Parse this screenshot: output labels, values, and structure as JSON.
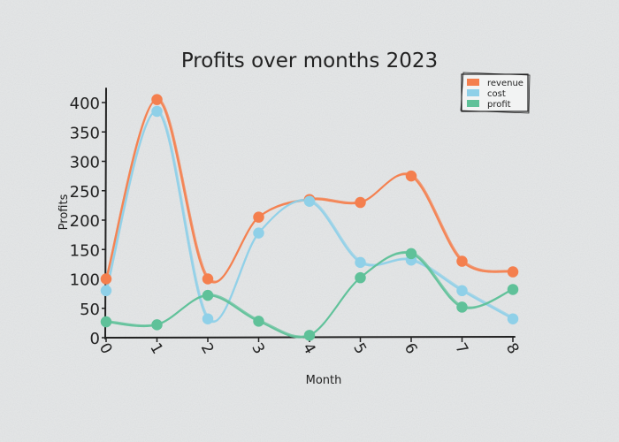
{
  "chart_data": {
    "type": "line",
    "title": "Profits over months 2023",
    "xlabel": "Month",
    "ylabel": "Profits",
    "x": [
      0,
      1,
      2,
      3,
      4,
      5,
      6,
      7,
      8
    ],
    "xlim": [
      0,
      8
    ],
    "ylim": [
      0,
      420
    ],
    "yticks": [
      0,
      50,
      100,
      150,
      200,
      250,
      300,
      350,
      400
    ],
    "grid": false,
    "legend_position": "top-right",
    "series": [
      {
        "name": "revenue",
        "color": "#f47f4e",
        "values": [
          100,
          405,
          100,
          205,
          235,
          230,
          275,
          130,
          112
        ]
      },
      {
        "name": "cost",
        "color": "#8fd0e8",
        "values": [
          80,
          385,
          32,
          178,
          232,
          128,
          132,
          80,
          32
        ]
      },
      {
        "name": "profit",
        "color": "#5fc199",
        "values": [
          27,
          22,
          72,
          28,
          4,
          102,
          143,
          52,
          82
        ]
      }
    ]
  }
}
